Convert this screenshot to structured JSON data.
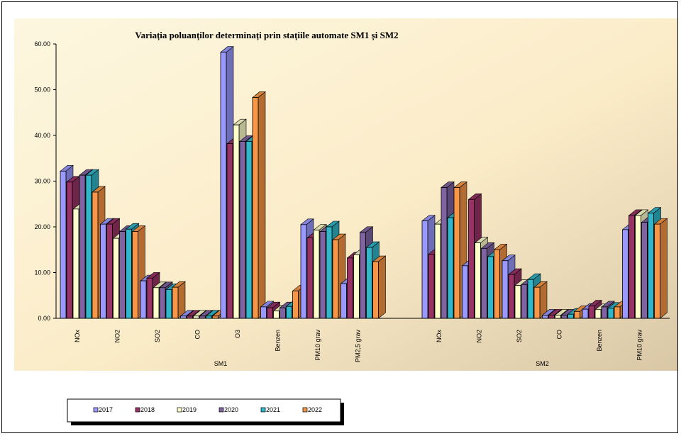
{
  "chart_data": {
    "type": "bar",
    "title": "Variația poluanților determinați prin stațiile automate SM1 și SM2",
    "ylim": [
      0,
      60
    ],
    "yticks": [
      "0.00",
      "10.00",
      "20.00",
      "30.00",
      "40.00",
      "50.00",
      "60.00"
    ],
    "grid": false,
    "legend_position": "bottom-left",
    "groups": [
      {
        "name": "SM1",
        "categories": [
          "NOx",
          "NO2",
          "SO2",
          "CO",
          "O3",
          "Benzen",
          "PM10 grav",
          "PM2,5 grav"
        ],
        "values": [
          [
            32.2,
            29.8,
            23.9,
            31.3,
            31.3,
            27.6
          ],
          [
            20.6,
            20.6,
            17.5,
            19.0,
            19.5,
            19.0
          ],
          [
            8.2,
            8.8,
            6.7,
            6.7,
            6.3,
            6.8
          ],
          [
            0.5,
            0.5,
            0.5,
            0.5,
            0.5,
            0.5
          ],
          [
            58.2,
            38.2,
            42.3,
            38.7,
            38.7,
            48.3
          ],
          [
            2.5,
            2.3,
            1.6,
            2.3,
            2.6,
            6.0
          ],
          [
            20.5,
            17.6,
            19.3,
            19.0,
            20.0,
            17.2
          ],
          [
            7.6,
            13.2,
            13.9,
            18.8,
            15.5,
            12.4
          ]
        ]
      },
      {
        "name": "SM2",
        "categories": [
          "NOx",
          "NO2",
          "SO2",
          "CO",
          "Benzen",
          "PM10 grav"
        ],
        "values": [
          [
            21.3,
            14.0,
            20.6,
            28.6,
            22.0,
            28.6
          ],
          [
            11.5,
            26.0,
            16.5,
            15.3,
            13.5,
            15.0
          ],
          [
            12.6,
            9.6,
            7.2,
            7.4,
            8.5,
            6.8
          ],
          [
            0.7,
            0.7,
            0.7,
            0.7,
            0.9,
            1.5
          ],
          [
            2.0,
            2.7,
            1.9,
            2.5,
            2.2,
            2.5
          ],
          [
            19.4,
            22.5,
            22.5,
            21.0,
            23.0,
            20.6
          ]
        ]
      }
    ],
    "series": [
      {
        "name": "2017",
        "color": "#9999ff"
      },
      {
        "name": "2018",
        "color": "#993366"
      },
      {
        "name": "2019",
        "color": "#ffffcc"
      },
      {
        "name": "2020",
        "color": "#8064a2"
      },
      {
        "name": "2021",
        "color": "#31b7c9"
      },
      {
        "name": "2022",
        "color": "#f79646"
      }
    ]
  }
}
